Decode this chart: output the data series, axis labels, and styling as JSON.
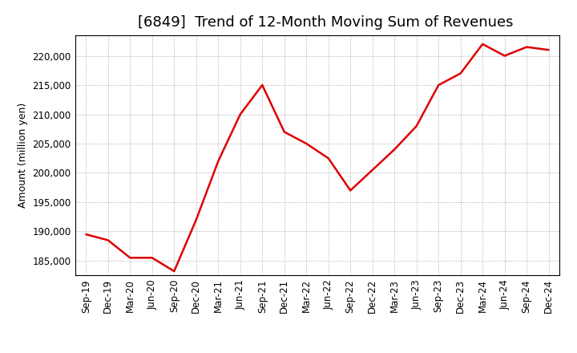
{
  "title": "[6849]  Trend of 12-Month Moving Sum of Revenues",
  "ylabel": "Amount (million yen)",
  "x_labels": [
    "Sep-19",
    "Dec-19",
    "Mar-20",
    "Jun-20",
    "Sep-20",
    "Dec-20",
    "Mar-21",
    "Jun-21",
    "Sep-21",
    "Dec-21",
    "Mar-22",
    "Jun-22",
    "Sep-22",
    "Dec-22",
    "Mar-23",
    "Jun-23",
    "Sep-23",
    "Dec-23",
    "Mar-24",
    "Jun-24",
    "Sep-24",
    "Dec-24"
  ],
  "y_values": [
    189500,
    188500,
    185500,
    185500,
    183200,
    192000,
    202000,
    210000,
    215000,
    207000,
    205000,
    202500,
    197000,
    200500,
    204000,
    208000,
    215000,
    217000,
    222000,
    220000,
    221500,
    221000
  ],
  "ylim_min": 182500,
  "ylim_max": 223500,
  "yticks": [
    185000,
    190000,
    195000,
    200000,
    205000,
    210000,
    215000,
    220000
  ],
  "line_color": "#dd0000",
  "background_color": "#ffffff",
  "grid_color": "#999999",
  "title_fontsize": 13,
  "label_fontsize": 9,
  "tick_fontsize": 8.5
}
